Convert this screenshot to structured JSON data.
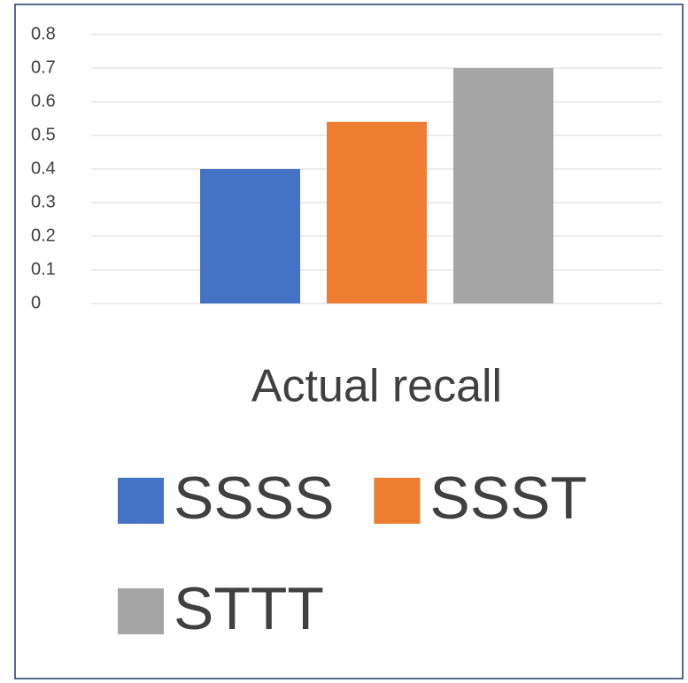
{
  "chart_data": {
    "type": "bar",
    "categories": [
      "Actual recall"
    ],
    "series": [
      {
        "name": "SSSS",
        "color": "#4472c4",
        "values": [
          0.4
        ]
      },
      {
        "name": "SSST",
        "color": "#ed7d31",
        "values": [
          0.54
        ]
      },
      {
        "name": "STTT",
        "color": "#a5a5a5",
        "values": [
          0.7
        ]
      }
    ],
    "ylim": [
      0,
      0.8
    ],
    "yticks": [
      0,
      0.1,
      0.2,
      0.3,
      0.4,
      0.5,
      0.6,
      0.7,
      0.8
    ],
    "grid": true,
    "legend": "bottom"
  }
}
